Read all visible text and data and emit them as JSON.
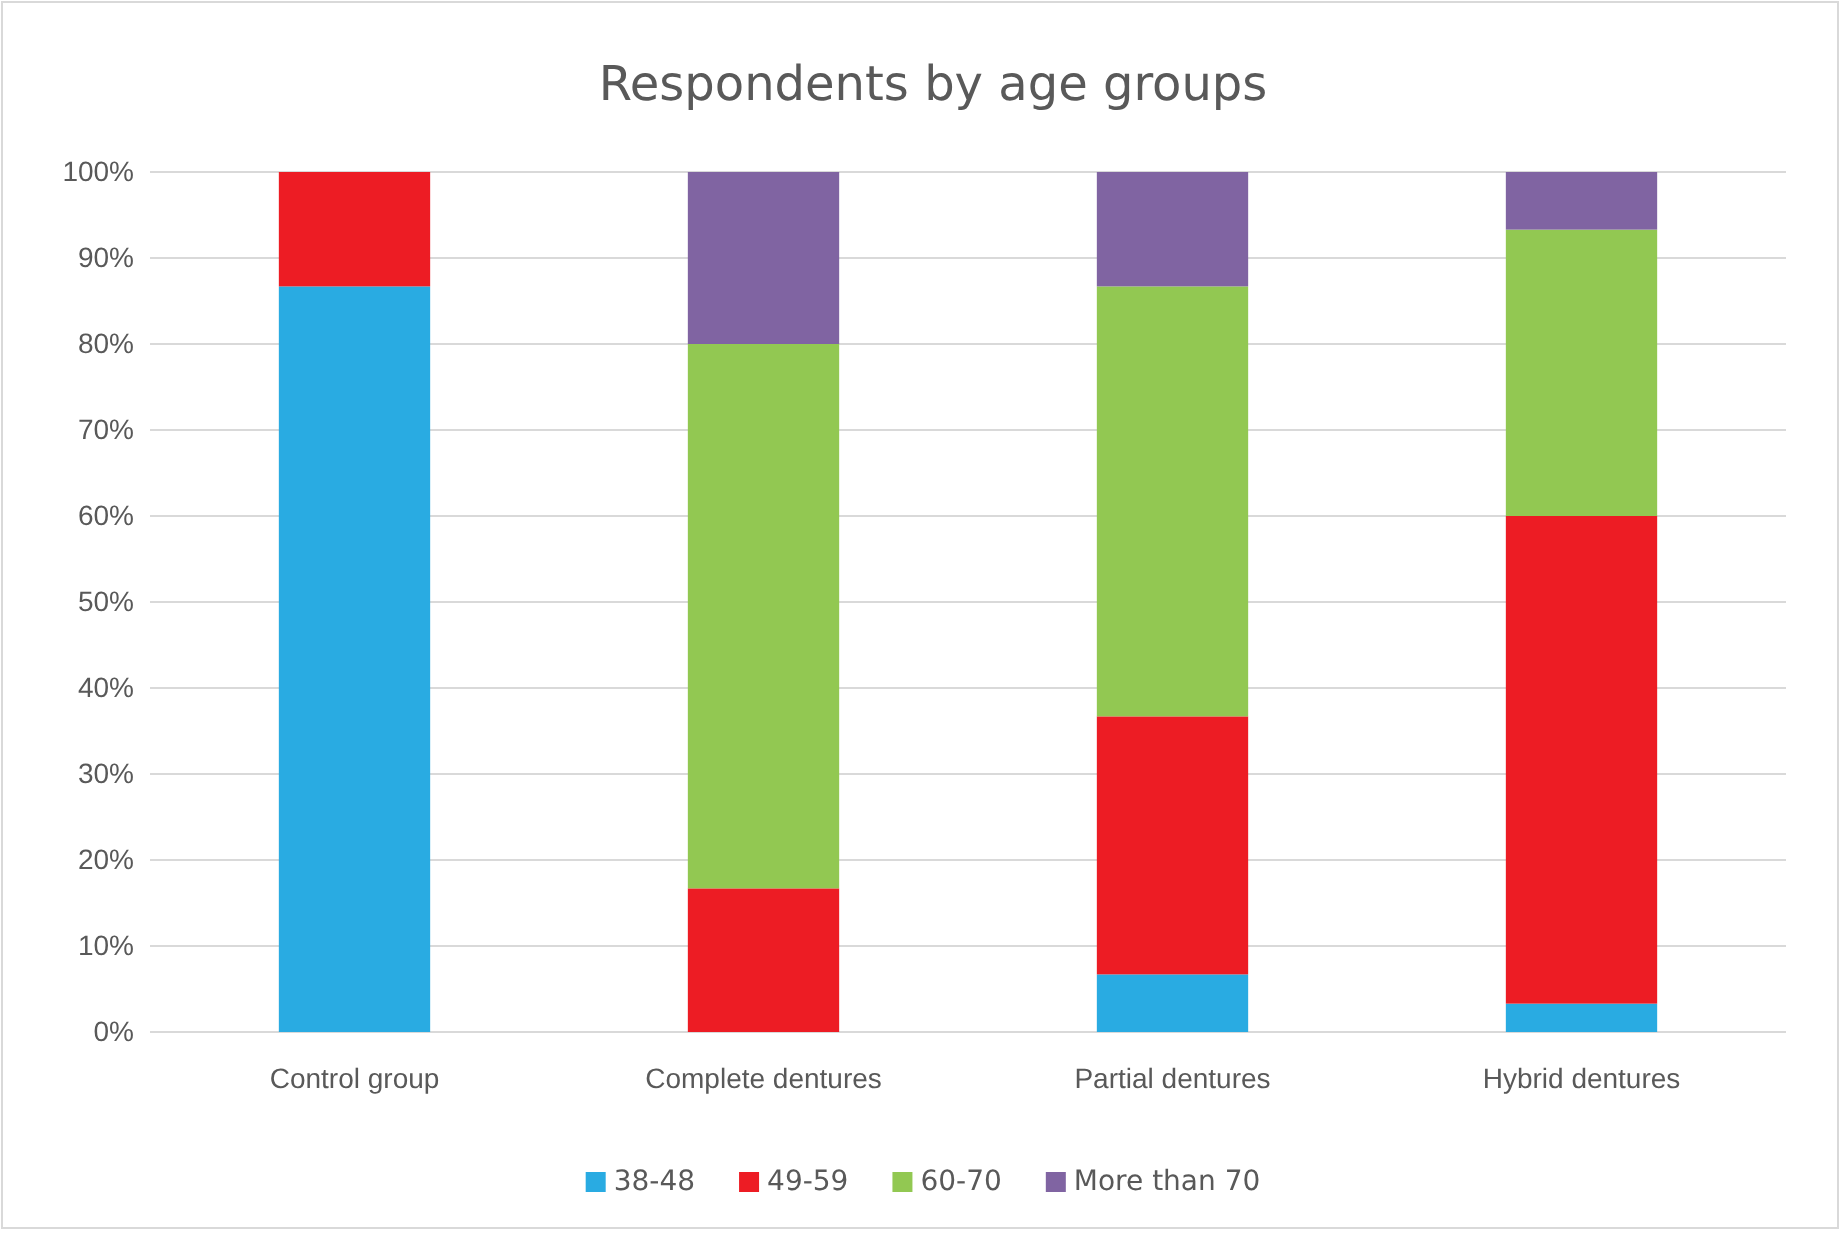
{
  "chart_data": {
    "type": "bar",
    "title": "Respondents by age groups",
    "categories": [
      "Control group",
      "Complete dentures",
      "Partial dentures",
      "Hybrid dentures"
    ],
    "stacked": true,
    "series": [
      {
        "name": "38-48",
        "color": "#29abe2",
        "values": [
          86.7,
          0,
          6.7,
          3.3
        ]
      },
      {
        "name": "49-59",
        "color": "#ed1c24",
        "values": [
          13.3,
          16.7,
          30,
          56.7
        ]
      },
      {
        "name": "60-70",
        "color": "#92c852",
        "values": [
          0,
          63.3,
          50,
          33.3
        ]
      },
      {
        "name": "More than 70",
        "color": "#8064a2",
        "values": [
          0,
          20,
          13.3,
          6.7
        ]
      }
    ],
    "ylim": [
      0,
      100
    ],
    "yticks": [
      {
        "value": 0,
        "label": "0%"
      },
      {
        "value": 10,
        "label": "10%"
      },
      {
        "value": 20,
        "label": "20%"
      },
      {
        "value": 30,
        "label": "30%"
      },
      {
        "value": 40,
        "label": "40%"
      },
      {
        "value": 50,
        "label": "50%"
      },
      {
        "value": 60,
        "label": "60%"
      },
      {
        "value": 70,
        "label": "70%"
      },
      {
        "value": 80,
        "label": "80%"
      },
      {
        "value": 90,
        "label": "90%"
      },
      {
        "value": 100,
        "label": "100%"
      }
    ],
    "grid": "y",
    "legend": "bottom"
  }
}
